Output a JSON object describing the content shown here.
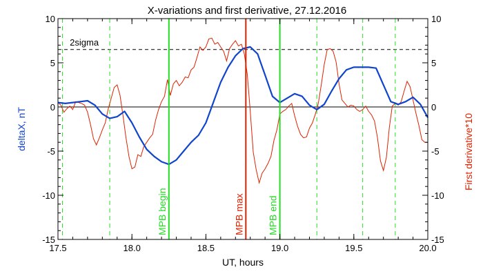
{
  "chart_data": {
    "type": "line",
    "title": "X-variations and first derivative, 27.12.2016",
    "xlabel": "UT, hours",
    "ylabel_left": "deltaX, nT",
    "ylabel_right": "First derivative*10",
    "xlim": [
      17.5,
      20.0
    ],
    "ylim": [
      -15,
      10
    ],
    "x_ticks": [
      "17.5",
      "18.0",
      "18.5",
      "19.0",
      "19.5",
      "20.0"
    ],
    "y_ticks": [
      "-15",
      "-10",
      "-5",
      "0",
      "5",
      "10"
    ],
    "grid": false,
    "threshold": {
      "label": "2sigma",
      "y": 6.5
    },
    "markers": [
      {
        "label": "MPB begin",
        "x": 18.25,
        "color": "#22dd22"
      },
      {
        "label": "MPB max",
        "x": 18.77,
        "color": "#dd2200"
      },
      {
        "label": "MPB end",
        "x": 19.0,
        "color": "#22dd22"
      }
    ],
    "dashed_lines_x": [
      17.53,
      17.85,
      19.25,
      19.56,
      19.78
    ],
    "colors": {
      "deltaX": "#1144cc",
      "derivative": "#dd2200",
      "marker_green": "#22dd22",
      "marker_red": "#dd2200"
    },
    "series": [
      {
        "key": "deltaX",
        "x": [
          17.5,
          17.55,
          17.6,
          17.65,
          17.7,
          17.75,
          17.8,
          17.85,
          17.9,
          17.95,
          18.0,
          18.05,
          18.1,
          18.15,
          18.2,
          18.25,
          18.3,
          18.35,
          18.4,
          18.45,
          18.5,
          18.55,
          18.6,
          18.65,
          18.7,
          18.75,
          18.8,
          18.85,
          18.9,
          18.95,
          19.0,
          19.05,
          19.1,
          19.15,
          19.2,
          19.25,
          19.3,
          19.35,
          19.4,
          19.45,
          19.5,
          19.55,
          19.6,
          19.65,
          19.7,
          19.75,
          19.8,
          19.85,
          19.9,
          19.95,
          20.0
        ],
        "values": [
          0.5,
          0.4,
          0.5,
          0.6,
          0.7,
          0.2,
          -0.8,
          -1.3,
          -1.1,
          -0.5,
          -1.8,
          -3.4,
          -4.8,
          -5.6,
          -6.2,
          -6.5,
          -6.0,
          -5.0,
          -4.0,
          -3.2,
          -1.8,
          0.5,
          2.8,
          4.5,
          5.8,
          6.6,
          6.8,
          6.0,
          3.6,
          1.2,
          0.5,
          1.0,
          1.5,
          1.2,
          0.2,
          -0.3,
          0.3,
          1.8,
          3.2,
          4.2,
          4.5,
          4.5,
          4.5,
          4.4,
          2.5,
          0.6,
          0.3,
          0.6,
          1.1,
          0.3,
          -1.2
        ]
      },
      {
        "key": "derivative",
        "x": [
          17.5,
          17.52,
          17.54,
          17.56,
          17.58,
          17.6,
          17.62,
          17.64,
          17.66,
          17.68,
          17.7,
          17.72,
          17.74,
          17.76,
          17.78,
          17.8,
          17.82,
          17.84,
          17.86,
          17.88,
          17.9,
          17.92,
          17.94,
          17.96,
          17.98,
          18.0,
          18.02,
          18.04,
          18.06,
          18.08,
          18.1,
          18.12,
          18.14,
          18.16,
          18.18,
          18.2,
          18.22,
          18.24,
          18.26,
          18.28,
          18.3,
          18.32,
          18.34,
          18.36,
          18.38,
          18.4,
          18.42,
          18.44,
          18.46,
          18.48,
          18.5,
          18.52,
          18.54,
          18.56,
          18.58,
          18.6,
          18.62,
          18.64,
          18.66,
          18.68,
          18.7,
          18.72,
          18.74,
          18.76,
          18.78,
          18.8,
          18.82,
          18.84,
          18.86,
          18.88,
          18.9,
          18.92,
          18.94,
          18.96,
          18.98,
          19.0,
          19.02,
          19.04,
          19.06,
          19.08,
          19.1,
          19.12,
          19.14,
          19.16,
          19.18,
          19.2,
          19.22,
          19.24,
          19.26,
          19.28,
          19.3,
          19.32,
          19.34,
          19.36,
          19.38,
          19.4,
          19.42,
          19.44,
          19.46,
          19.48,
          19.5,
          19.52,
          19.54,
          19.56,
          19.58,
          19.6,
          19.62,
          19.64,
          19.66,
          19.68,
          19.7,
          19.72,
          19.74,
          19.76,
          19.78,
          19.8,
          19.82,
          19.84,
          19.86,
          19.88,
          19.9,
          19.92,
          19.94,
          19.96,
          19.98,
          20.0
        ],
        "values": [
          0.5,
          0.2,
          -0.6,
          -0.2,
          0.1,
          -0.3,
          0.6,
          0.5,
          0.4,
          0.2,
          -0.6,
          -2.0,
          -3.6,
          -4.3,
          -3.5,
          -2.6,
          -1.8,
          -0.2,
          1.0,
          2.2,
          2.5,
          1.3,
          -1.0,
          -3.5,
          -5.6,
          -7.0,
          -6.8,
          -5.4,
          -5.6,
          -4.5,
          -4.0,
          -3.5,
          -3.1,
          -1.5,
          -0.3,
          0.6,
          1.2,
          3.1,
          1.3,
          2.6,
          3.0,
          2.4,
          2.8,
          3.4,
          3.3,
          4.2,
          4.5,
          5.6,
          6.8,
          6.4,
          6.8,
          7.7,
          7.8,
          7.1,
          7.3,
          6.8,
          6.3,
          5.2,
          6.6,
          7.1,
          7.5,
          6.9,
          7.1,
          6.0,
          3.7,
          -0.5,
          -5.1,
          -7.1,
          -8.6,
          -7.5,
          -7.0,
          -6.4,
          -5.6,
          -3.8,
          -2.6,
          -0.8,
          -0.5,
          -0.3,
          0.1,
          0.4,
          -1.0,
          -2.2,
          -3.1,
          -3.5,
          -3.4,
          -2.4,
          -1.8,
          -0.8,
          0.4,
          2.5,
          4.8,
          6.5,
          6.6,
          6.3,
          5.1,
          2.6,
          0.8,
          0.4,
          0.0,
          0.2,
          0.1,
          -0.3,
          -0.5,
          -0.3,
          0.1,
          -0.5,
          -0.9,
          -1.6,
          -3.5,
          -6.1,
          -7.2,
          -5.7,
          -2.3,
          0.1,
          0.4,
          0.2,
          0.6,
          1.8,
          2.9,
          2.3,
          0.8,
          -0.7,
          -2.1,
          -3.7,
          -4.0,
          -4.0
        ]
      }
    ]
  }
}
